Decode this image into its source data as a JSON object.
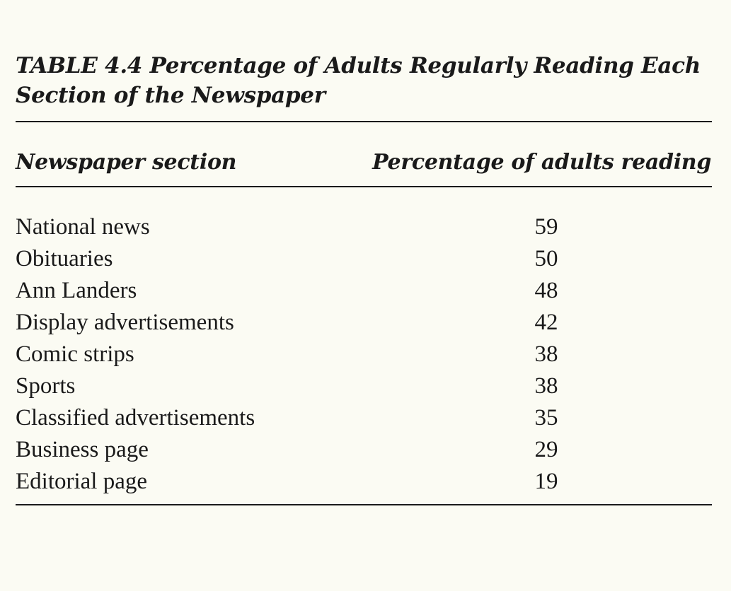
{
  "table": {
    "title_line1": "TABLE 4.4 Percentage of Adults Regularly Reading Each",
    "title_line2": "Section of the Newspaper",
    "headers": {
      "section": "Newspaper section",
      "percentage": "Percentage of adults reading"
    },
    "rows": [
      {
        "section": "National news",
        "percentage": "59"
      },
      {
        "section": "Obituaries",
        "percentage": "50"
      },
      {
        "section": "Ann Landers",
        "percentage": "48"
      },
      {
        "section": "Display advertisements",
        "percentage": "42"
      },
      {
        "section": "Comic strips",
        "percentage": "38"
      },
      {
        "section": "Sports",
        "percentage": "38"
      },
      {
        "section": "Classified advertisements",
        "percentage": "35"
      },
      {
        "section": "Business page",
        "percentage": "29"
      },
      {
        "section": "Editorial page",
        "percentage": "19"
      }
    ]
  }
}
